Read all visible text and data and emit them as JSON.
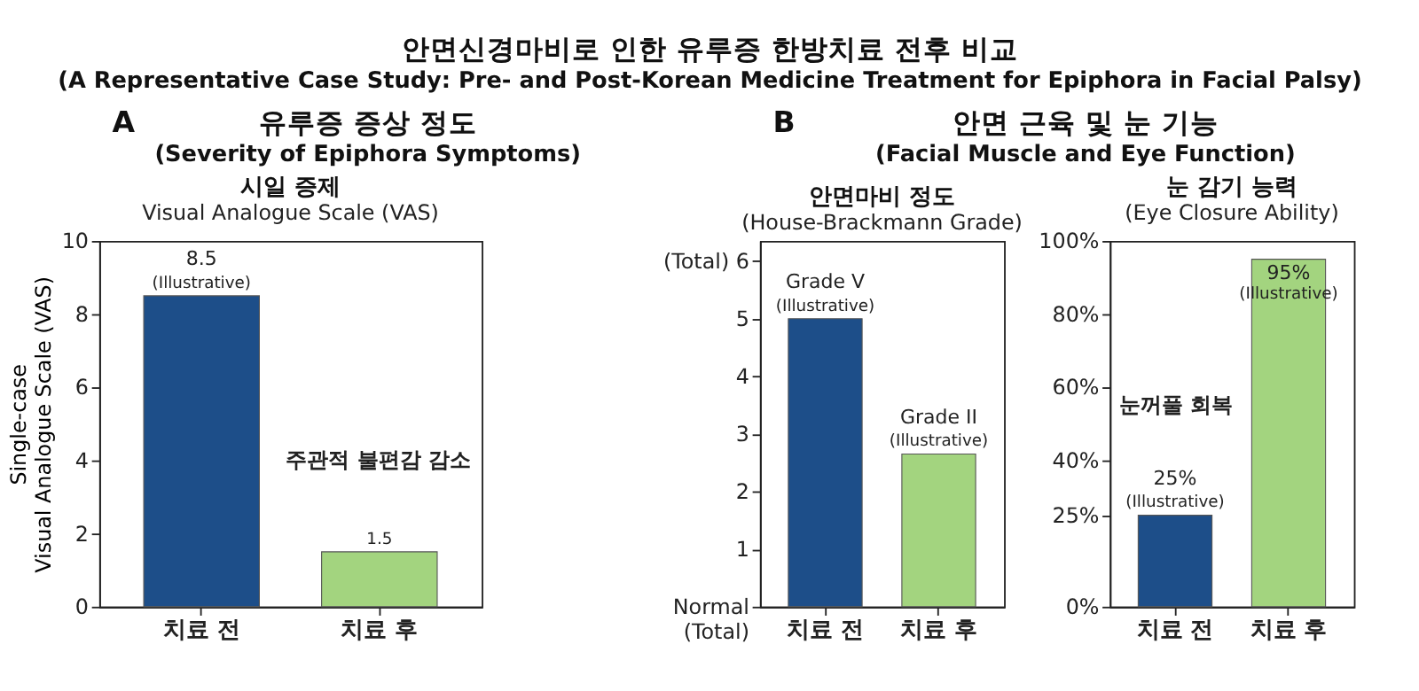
{
  "chart_data": [
    {
      "type": "other",
      "title": "안면신경마비로 인한 유루증 한방치료 전후 비교",
      "subtitle": "(A Representative Case Study: Pre- and Post-Korean Medicine Treatment for Epiphora in Facial Palsy)",
      "annotations": [
        "A",
        "유루증 증상 정도",
        "(Severity of Epiphora Symptoms)",
        "B",
        "안면 근육 및 눈 기능",
        "(Facial Muscle and Eye Function)"
      ]
    },
    {
      "type": "bar",
      "title": "시일 증제",
      "subtitle": "Visual Analogue Scale (VAS)",
      "ylabel": "Single-case\nVisual Analogue Scale (VAS)",
      "categories": [
        "치료 전",
        "치료 후"
      ],
      "values": [
        8.5,
        1.5
      ],
      "colors": [
        "#1d4e89",
        "#a3d47f"
      ],
      "value_labels": [
        "8.5\n(Illustrative)",
        "1.5"
      ],
      "ylim": [
        0,
        10
      ],
      "yticks": [
        0,
        2,
        4,
        6,
        8,
        10
      ],
      "grid": false,
      "annotations": [
        "주관적 불편감 감소"
      ]
    },
    {
      "type": "bar",
      "title": "안면마비 정도",
      "subtitle": "(House-Brackmann Grade)",
      "categories": [
        "치료 전",
        "치료 후"
      ],
      "values": [
        5,
        2.65
      ],
      "colors": [
        "#1d4e89",
        "#a3d47f"
      ],
      "value_labels": [
        "Grade V\n(Illustrative)",
        "Grade II\n(Illustrative)"
      ],
      "ylim": [
        0,
        6.35
      ],
      "yticks": [
        {
          "value": 0,
          "label": "Normal\n(Total)"
        },
        1,
        2,
        3,
        4,
        5,
        {
          "value": 6,
          "label": "(Total) 6"
        }
      ],
      "grid": false
    },
    {
      "type": "bar",
      "title": "눈 감기 능력",
      "subtitle": "(Eye Closure Ability)",
      "categories": [
        "치료 전",
        "치료 후"
      ],
      "values": [
        25,
        95
      ],
      "colors": [
        "#1d4e89",
        "#a3d47f"
      ],
      "value_labels": [
        "25%\n(Illustrative)",
        "95%\n(Illustrative)"
      ],
      "ylim": [
        0,
        100
      ],
      "yticks": [
        {
          "value": 0,
          "label": "0%"
        },
        {
          "value": 25,
          "label": "25%"
        },
        {
          "value": 40,
          "label": "40%"
        },
        {
          "value": 60,
          "label": "60%"
        },
        {
          "value": 80,
          "label": "80%"
        },
        {
          "value": 100,
          "label": "100%"
        }
      ],
      "grid": false,
      "annotations": [
        "눈꺼풀 회복"
      ]
    }
  ]
}
